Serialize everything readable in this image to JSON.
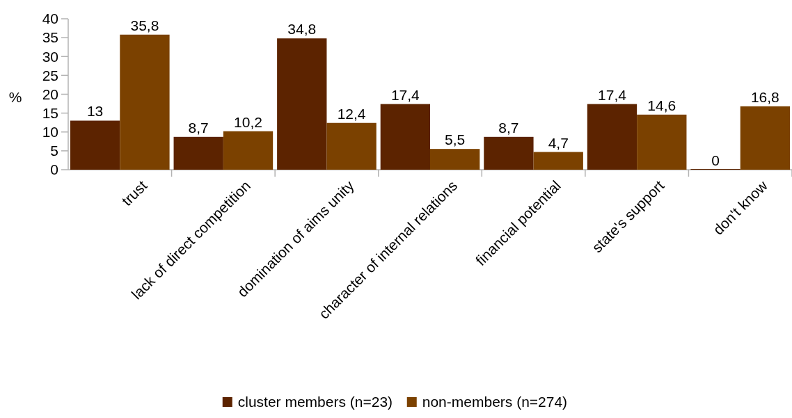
{
  "chart_data": {
    "type": "bar",
    "ylabel": "%",
    "categories": [
      "trust",
      "lack of direct competition",
      "domination of aims unity",
      "character of internal relations",
      "financial potential",
      "state's support",
      "don't know"
    ],
    "series": [
      {
        "name": "cluster members (n=23)",
        "color": "#5c2300",
        "values": [
          13,
          8.7,
          34.8,
          17.4,
          8.7,
          17.4,
          0
        ],
        "value_labels": [
          "13",
          "8,7",
          "34,8",
          "17,4",
          "8,7",
          "17,4",
          "0"
        ]
      },
      {
        "name": "non-members (n=274)",
        "color": "#7b4100",
        "values": [
          35.8,
          10.2,
          12.4,
          5.5,
          4.7,
          14.6,
          16.8
        ],
        "value_labels": [
          "35,8",
          "10,2",
          "12,4",
          "5,5",
          "4,7",
          "14,6",
          "16,8"
        ]
      }
    ],
    "ylim": [
      0,
      40
    ],
    "yticks": [
      0,
      5,
      10,
      15,
      20,
      25,
      30,
      35,
      40
    ],
    "grid": false,
    "legend": "bottom"
  }
}
